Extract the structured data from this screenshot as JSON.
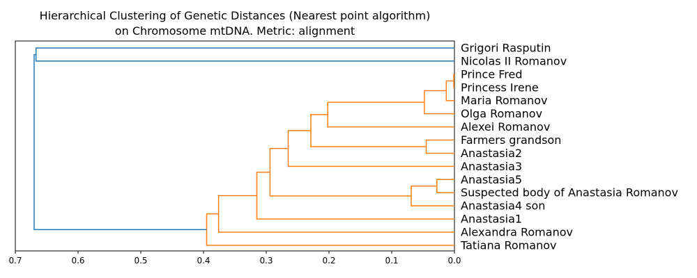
{
  "chart_data": {
    "type": "dendrogram",
    "title": [
      "Hierarchical Clustering of Genetic Distances (Nearest point algorithm)",
      "on Chromosome mtDNA. Metric: alignment"
    ],
    "xlabel": "",
    "ylabel": "",
    "x_direction": "decreasing",
    "xlim": [
      0.7,
      0.0
    ],
    "xticks": [
      0.7,
      0.6,
      0.5,
      0.4,
      0.3,
      0.2,
      0.1,
      0.0
    ],
    "xtick_labels": [
      "0.7",
      "0.6",
      "0.5",
      "0.4",
      "0.3",
      "0.2",
      "0.1",
      "0.0"
    ],
    "colors": {
      "above_threshold": "#1f77b4",
      "cluster": "#ff7f0e"
    },
    "leaves": [
      "Grigori Rasputin",
      "Nicolas II Romanov",
      "Prince Fred",
      "Princess Irene",
      "Maria Romanov",
      "Olga Romanov",
      "Alexei Romanov",
      "Farmers grandson",
      "Anastasia2",
      "Anastasia3",
      "Anastasia5",
      "Suspected body of Anastasia Romanov",
      "Anastasia4 son",
      "Anastasia1",
      "Alexandra Romanov",
      "Tatiana Romanov"
    ],
    "merges": [
      {
        "id": "m1",
        "a": "Prince Fred",
        "b": "Princess Irene",
        "height": 0.001,
        "color": "cluster"
      },
      {
        "id": "m2",
        "a": "m1",
        "b": "Maria Romanov",
        "height": 0.013,
        "color": "cluster"
      },
      {
        "id": "m3",
        "a": "m2",
        "b": "Olga Romanov",
        "height": 0.048,
        "color": "cluster"
      },
      {
        "id": "m4",
        "a": "m3",
        "b": "Alexei Romanov",
        "height": 0.202,
        "color": "cluster"
      },
      {
        "id": "m5",
        "a": "Farmers grandson",
        "b": "Anastasia2",
        "height": 0.045,
        "color": "cluster"
      },
      {
        "id": "m6",
        "a": "m4",
        "b": "m5",
        "height": 0.229,
        "color": "cluster"
      },
      {
        "id": "m7",
        "a": "m6",
        "b": "Anastasia3",
        "height": 0.265,
        "color": "cluster"
      },
      {
        "id": "m8",
        "a": "Anastasia5",
        "b": "Suspected body of Anastasia Romanov",
        "height": 0.028,
        "color": "cluster"
      },
      {
        "id": "m9",
        "a": "m8",
        "b": "Anastasia4 son",
        "height": 0.069,
        "color": "cluster"
      },
      {
        "id": "m10",
        "a": "m7",
        "b": "m9",
        "height": 0.294,
        "color": "cluster"
      },
      {
        "id": "m11",
        "a": "m10",
        "b": "Anastasia1",
        "height": 0.315,
        "color": "cluster"
      },
      {
        "id": "m12",
        "a": "m11",
        "b": "Alexandra Romanov",
        "height": 0.376,
        "color": "cluster"
      },
      {
        "id": "m13",
        "a": "m12",
        "b": "Tatiana Romanov",
        "height": 0.395,
        "color": "cluster"
      },
      {
        "id": "m14",
        "a": "Grigori Rasputin",
        "b": "Nicolas II Romanov",
        "height": 0.667,
        "color": "above_threshold"
      },
      {
        "id": "m15",
        "a": "m14",
        "b": "m13",
        "height": 0.67,
        "color": "above_threshold"
      }
    ]
  }
}
